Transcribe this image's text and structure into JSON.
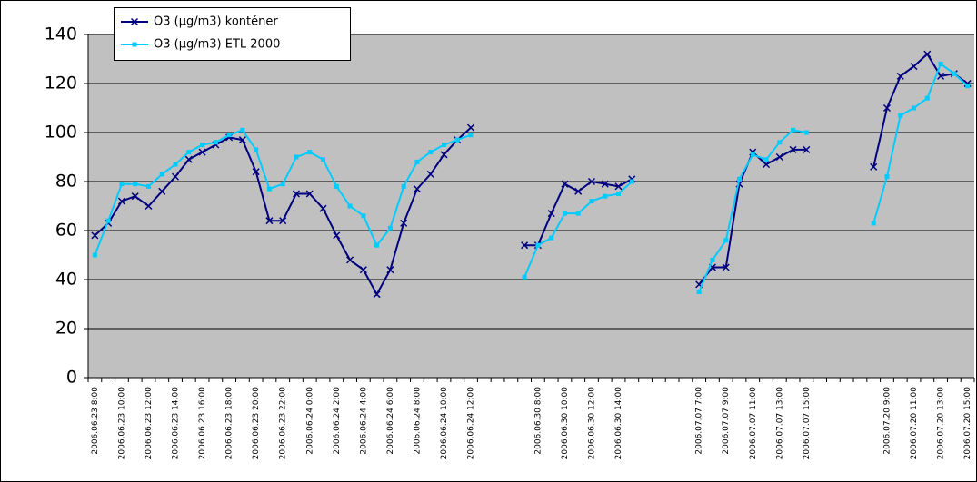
{
  "chart_data": {
    "type": "line",
    "categories": [
      "2006.06.23 8:00",
      null,
      "2006.06.23 10:00",
      null,
      "2006.06.23 12:00",
      null,
      "2006.06.23 14:00",
      null,
      "2006.06.23 16:00",
      null,
      "2006.06.23 18:00",
      null,
      "2006.06.23 20:00",
      null,
      "2006.06.23 22:00",
      null,
      "2006.06.24 0:00",
      null,
      "2006.06.24 2:00",
      null,
      "2006.06.24 4:00",
      null,
      "2006.06.24 6:00",
      null,
      "2006.06.24 8:00",
      null,
      "2006.06.24 10:00",
      null,
      "2006.06.24 12:00",
      null,
      null,
      null,
      null,
      "2006.06.30 8:00",
      null,
      "2006.06.30 10:00",
      null,
      "2006.06.30 12:00",
      null,
      "2006.06.30 14:00",
      null,
      null,
      null,
      null,
      null,
      "2006.07.07 7:00",
      null,
      "2006.07.07 9:00",
      null,
      "2006.07.07 11:00",
      null,
      "2006.07.07 13:00",
      null,
      "2006.07.07 15:00",
      null,
      null,
      null,
      null,
      null,
      "2006.07.20 9:00",
      null,
      "2006.07.20 11:00",
      null,
      "2006.07.20 13:00",
      null,
      "2006.07.20 15:00"
    ],
    "series": [
      {
        "name": "O3 (µg/m3) konténer",
        "color": "#000080",
        "marker": "x",
        "values": [
          58,
          63,
          72,
          74,
          70,
          76,
          82,
          89,
          92,
          95,
          98,
          97,
          84,
          64,
          64,
          75,
          75,
          69,
          58,
          48,
          44,
          34,
          44,
          63,
          77,
          83,
          91,
          97,
          102,
          null,
          null,
          null,
          54,
          54,
          67,
          79,
          76,
          80,
          79,
          78,
          81,
          null,
          null,
          null,
          null,
          38,
          45,
          45,
          79,
          92,
          87,
          90,
          93,
          93,
          null,
          null,
          null,
          null,
          86,
          110,
          123,
          127,
          132,
          123,
          124,
          120
        ]
      },
      {
        "name": "O3 (µg/m3) ETL 2000",
        "color": "#00ccff",
        "marker": "square",
        "values": [
          50,
          64,
          79,
          79,
          78,
          83,
          87,
          92,
          95,
          96,
          99,
          101,
          93,
          77,
          79,
          90,
          92,
          89,
          78,
          70,
          66,
          54,
          61,
          78,
          88,
          92,
          95,
          97,
          99,
          null,
          null,
          null,
          41,
          54,
          57,
          67,
          67,
          72,
          74,
          75,
          80,
          null,
          null,
          null,
          null,
          35,
          48,
          56,
          81,
          91,
          89,
          96,
          101,
          100,
          null,
          null,
          null,
          null,
          63,
          82,
          107,
          110,
          114,
          128,
          124,
          119
        ]
      }
    ],
    "ylim": [
      0,
      140
    ],
    "yticks": [
      0,
      20,
      40,
      60,
      80,
      100,
      120,
      140
    ],
    "grid": true,
    "legend": "top-left"
  }
}
